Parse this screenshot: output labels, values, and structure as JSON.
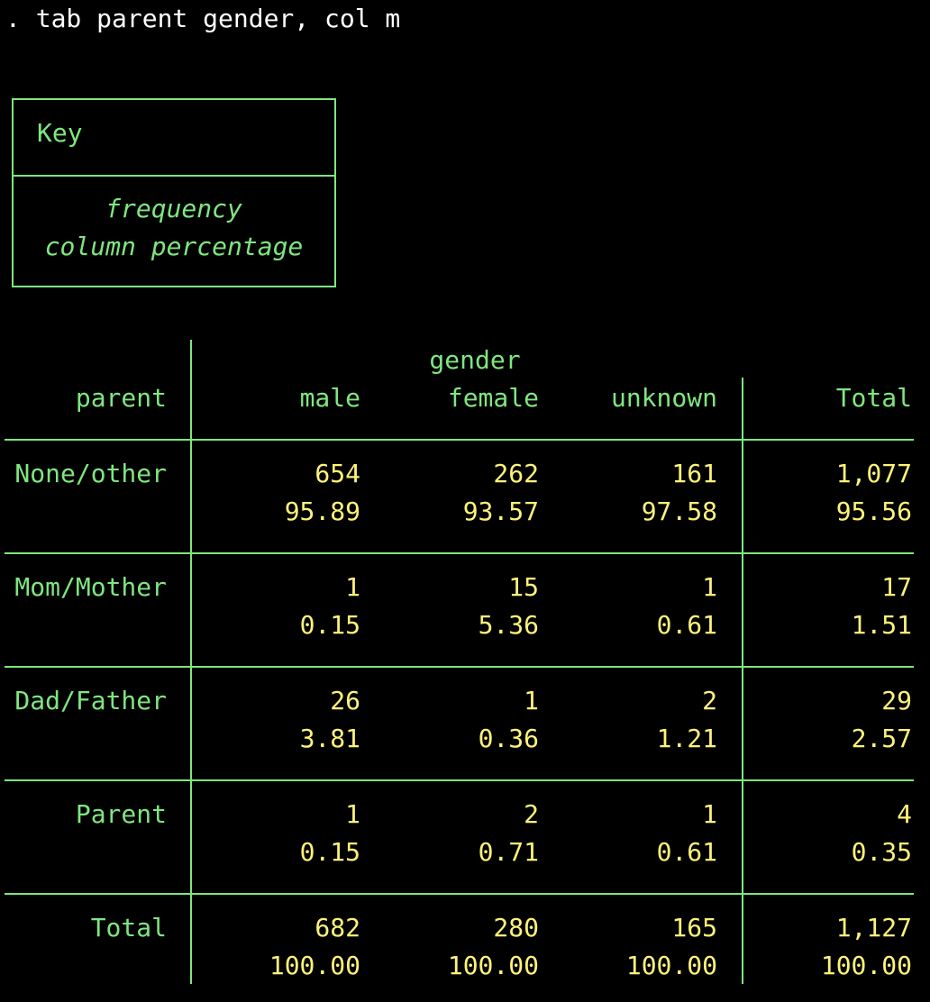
{
  "command": ". tab parent gender, col m",
  "key": {
    "title": "Key",
    "line1": "frequency",
    "line2": "column percentage"
  },
  "table": {
    "row_var": "parent",
    "col_var": "gender",
    "columns": [
      "male",
      "female",
      "unknown",
      "Total"
    ],
    "rows": [
      {
        "label": "None/other",
        "freq": [
          "654",
          "262",
          "161",
          "1,077"
        ],
        "pct": [
          "95.89",
          "93.57",
          "97.58",
          "95.56"
        ]
      },
      {
        "label": "Mom/Mother",
        "freq": [
          "1",
          "15",
          "1",
          "17"
        ],
        "pct": [
          "0.15",
          "5.36",
          "0.61",
          "1.51"
        ]
      },
      {
        "label": "Dad/Father",
        "freq": [
          "26",
          "1",
          "2",
          "29"
        ],
        "pct": [
          "3.81",
          "0.36",
          "1.21",
          "2.57"
        ]
      },
      {
        "label": "Parent",
        "freq": [
          "1",
          "2",
          "1",
          "4"
        ],
        "pct": [
          "0.15",
          "0.71",
          "0.61",
          "0.35"
        ]
      },
      {
        "label": "Total",
        "freq": [
          "682",
          "280",
          "165",
          "1,127"
        ],
        "pct": [
          "100.00",
          "100.00",
          "100.00",
          "100.00"
        ]
      }
    ]
  },
  "colors": {
    "background": "#000000",
    "command_text": "#ffffff",
    "labels": "#7fe67f",
    "values": "#fff27a"
  }
}
